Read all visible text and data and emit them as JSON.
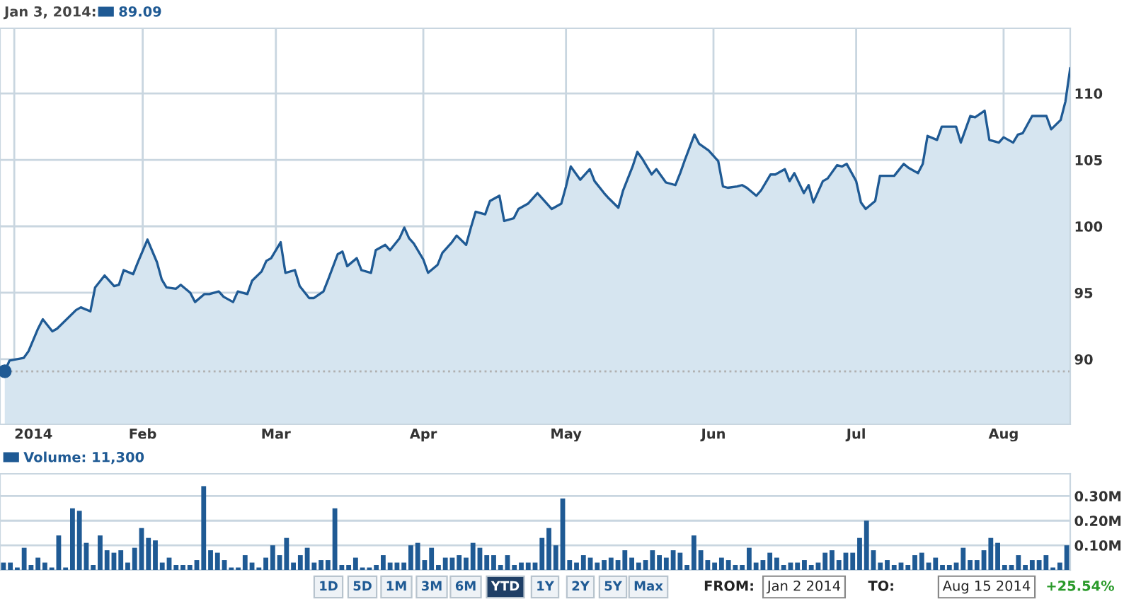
{
  "chart_data": [
    {
      "type": "area",
      "legend_title": "Jan 3, 2014:",
      "legend": "top left",
      "grid": true,
      "ylim": [
        85.1,
        114.9
      ],
      "yticks": [
        90,
        95,
        100,
        105,
        110
      ],
      "xlim": [
        "2014-01-02",
        "2014-08-15"
      ],
      "xticks": [
        {
          "value": "2014-01-05",
          "label": "2014"
        },
        {
          "value": "2014-02-01",
          "label": "Feb"
        },
        {
          "value": "2014-03-01",
          "label": "Mar"
        },
        {
          "value": "2014-04-01",
          "label": "Apr"
        },
        {
          "value": "2014-05-01",
          "label": "May"
        },
        {
          "value": "2014-06-01",
          "label": "Jun"
        },
        {
          "value": "2014-07-01",
          "label": "Jul"
        },
        {
          "value": "2014-08-01",
          "label": "Aug"
        }
      ],
      "ref_lines": [
        {
          "axis": "y",
          "value": 89.09,
          "color": "#b0b0b0",
          "line_style": "dotted"
        }
      ],
      "series": [
        {
          "name": "89.09",
          "color": "#1f5a94",
          "x": [
            "2014-01-03",
            "2014-01-04",
            "2014-01-07",
            "2014-01-08",
            "2014-01-10",
            "2014-01-11",
            "2014-01-13",
            "2014-01-14",
            "2014-01-18",
            "2014-01-19",
            "2014-01-21",
            "2014-01-22",
            "2014-01-24",
            "2014-01-26",
            "2014-01-27",
            "2014-01-28",
            "2014-01-30",
            "2014-01-31",
            "2014-02-02",
            "2014-02-04",
            "2014-02-05",
            "2014-02-06",
            "2014-02-08",
            "2014-02-09",
            "2014-02-11",
            "2014-02-12",
            "2014-02-14",
            "2014-02-15",
            "2014-02-17",
            "2014-02-18",
            "2014-02-20",
            "2014-02-21",
            "2014-02-23",
            "2014-02-24",
            "2014-02-26",
            "2014-02-27",
            "2014-02-28",
            "2014-03-02",
            "2014-03-03",
            "2014-03-05",
            "2014-03-06",
            "2014-03-08",
            "2014-03-09",
            "2014-03-11",
            "2014-03-12",
            "2014-03-14",
            "2014-03-15",
            "2014-03-16",
            "2014-03-18",
            "2014-03-19",
            "2014-03-21",
            "2014-03-22",
            "2014-03-24",
            "2014-03-25",
            "2014-03-27",
            "2014-03-28",
            "2014-03-29",
            "2014-03-30",
            "2014-04-01",
            "2014-04-02",
            "2014-04-04",
            "2014-04-05",
            "2014-04-07",
            "2014-04-08",
            "2014-04-10",
            "2014-04-11",
            "2014-04-12",
            "2014-04-14",
            "2014-04-15",
            "2014-04-17",
            "2014-04-18",
            "2014-04-20",
            "2014-04-21",
            "2014-04-23",
            "2014-04-25",
            "2014-04-28",
            "2014-04-30",
            "2014-05-01",
            "2014-05-02",
            "2014-05-04",
            "2014-05-06",
            "2014-05-07",
            "2014-05-09",
            "2014-05-10",
            "2014-05-12",
            "2014-05-13",
            "2014-05-15",
            "2014-05-16",
            "2014-05-17",
            "2014-05-19",
            "2014-05-20",
            "2014-05-22",
            "2014-05-24",
            "2014-05-25",
            "2014-05-26",
            "2014-05-28",
            "2014-05-29",
            "2014-05-31",
            "2014-06-02",
            "2014-06-03",
            "2014-06-04",
            "2014-06-06",
            "2014-06-07",
            "2014-06-08",
            "2014-06-10",
            "2014-06-11",
            "2014-06-13",
            "2014-06-14",
            "2014-06-16",
            "2014-06-17",
            "2014-06-18",
            "2014-06-20",
            "2014-06-21",
            "2014-06-22",
            "2014-06-24",
            "2014-06-25",
            "2014-06-27",
            "2014-06-28",
            "2014-06-29",
            "2014-07-01",
            "2014-07-02",
            "2014-07-03",
            "2014-07-05",
            "2014-07-06",
            "2014-07-08",
            "2014-07-09",
            "2014-07-11",
            "2014-07-12",
            "2014-07-14",
            "2014-07-15",
            "2014-07-16",
            "2014-07-18",
            "2014-07-19",
            "2014-07-21",
            "2014-07-22",
            "2014-07-23",
            "2014-07-25",
            "2014-07-26",
            "2014-07-28",
            "2014-07-29",
            "2014-07-31",
            "2014-08-01",
            "2014-08-03",
            "2014-08-04",
            "2014-08-05",
            "2014-08-07",
            "2014-08-08",
            "2014-08-10",
            "2014-08-11",
            "2014-08-13",
            "2014-08-14",
            "2014-08-15"
          ],
          "values": [
            89.09,
            89.9,
            90.1,
            90.6,
            92.3,
            93.0,
            92.1,
            92.3,
            93.7,
            93.9,
            93.6,
            95.4,
            96.3,
            95.5,
            95.6,
            96.7,
            96.4,
            97.3,
            99.0,
            97.3,
            96.0,
            95.4,
            95.3,
            95.6,
            95.0,
            94.3,
            94.9,
            94.9,
            95.1,
            94.7,
            94.3,
            95.1,
            94.9,
            95.9,
            96.6,
            97.4,
            97.6,
            98.8,
            96.5,
            96.7,
            95.5,
            94.6,
            94.6,
            95.1,
            96.0,
            97.9,
            98.1,
            97.0,
            97.6,
            96.7,
            96.5,
            98.2,
            98.6,
            98.2,
            99.1,
            99.9,
            99.1,
            98.7,
            97.5,
            96.5,
            97.1,
            98.0,
            98.8,
            99.3,
            98.6,
            99.9,
            101.1,
            100.9,
            101.9,
            102.3,
            100.4,
            100.6,
            101.3,
            101.7,
            102.5,
            101.3,
            101.7,
            103.0,
            104.5,
            103.5,
            104.3,
            103.4,
            102.5,
            102.1,
            101.4,
            102.7,
            104.5,
            105.6,
            105.1,
            103.9,
            104.3,
            103.3,
            103.1,
            104.0,
            105.0,
            106.9,
            106.2,
            105.7,
            104.9,
            103.0,
            102.9,
            103.0,
            103.1,
            102.9,
            102.3,
            102.7,
            103.9,
            103.9,
            104.3,
            103.4,
            104.0,
            102.5,
            103.1,
            101.8,
            103.4,
            103.6,
            104.6,
            104.5,
            104.7,
            103.4,
            101.8,
            101.3,
            101.9,
            103.8,
            103.8,
            103.8,
            104.7,
            104.4,
            104.0,
            104.7,
            106.8,
            106.5,
            107.5,
            107.5,
            107.5,
            106.3,
            108.3,
            108.2,
            108.7,
            106.5,
            106.3,
            106.7,
            106.3,
            106.9,
            107.0,
            108.3,
            108.3,
            108.3,
            107.3,
            108.0,
            109.4,
            111.9
          ]
        },
        {
          "type": "scatter",
          "marker": "circle",
          "color": "#1f5a94",
          "x": [
            "2014-01-03"
          ],
          "values": [
            89.09
          ]
        }
      ]
    },
    {
      "type": "bar",
      "legend": "top left",
      "grid": "y",
      "tick_labels": "y",
      "ylim": [
        0,
        0.39
      ],
      "yticks": [
        {
          "value": 0.1,
          "label": "0.10M"
        },
        {
          "value": 0.2,
          "label": "0.20M"
        },
        {
          "value": 0.3,
          "label": "0.30M"
        }
      ],
      "categories": [
        null,
        null,
        null,
        null,
        null,
        null,
        null,
        null,
        null,
        null,
        null,
        null,
        null,
        null,
        null,
        null,
        null,
        null,
        null,
        null,
        null,
        null,
        null,
        null,
        null,
        null,
        null,
        null,
        null,
        null,
        null,
        null,
        null,
        null,
        null,
        null,
        null,
        null,
        null,
        null,
        null,
        null,
        null,
        null,
        null,
        null,
        null,
        null,
        null,
        null,
        null,
        null,
        null,
        null,
        null,
        null,
        null,
        null,
        null,
        null,
        null,
        null,
        null,
        null,
        null,
        null,
        null,
        null,
        null,
        null,
        null,
        null,
        null,
        null,
        null,
        null,
        null,
        null,
        null,
        null,
        null,
        null,
        null,
        null,
        null,
        null,
        null,
        null,
        null,
        null,
        null,
        null,
        null,
        null,
        null,
        null,
        null,
        null,
        null,
        null,
        null,
        null,
        null,
        null,
        null,
        null,
        null,
        null,
        null,
        null,
        null,
        null,
        null,
        null,
        null,
        null,
        null,
        null,
        null,
        null,
        null,
        null,
        null,
        null,
        null,
        null,
        null,
        null,
        null,
        null,
        null,
        null,
        null,
        null,
        null,
        null,
        null,
        null,
        null,
        null,
        null,
        null,
        null,
        null,
        null,
        null,
        null,
        null,
        null,
        null,
        null,
        null,
        null,
        null,
        null
      ],
      "series": [
        {
          "name": "Volume: 11,300",
          "color": "#1f5a94",
          "values": [
            0.03,
            0.03,
            0.01,
            0.09,
            0.02,
            0.05,
            0.03,
            0.01,
            0.14,
            0.01,
            0.25,
            0.24,
            0.11,
            0.02,
            0.14,
            0.08,
            0.07,
            0.08,
            0.03,
            0.09,
            0.17,
            0.13,
            0.12,
            0.03,
            0.05,
            0.02,
            0.02,
            0.02,
            0.04,
            0.34,
            0.08,
            0.07,
            0.04,
            0.01,
            0.01,
            0.06,
            0.03,
            0.01,
            0.05,
            0.1,
            0.06,
            0.13,
            0.03,
            0.06,
            0.09,
            0.03,
            0.04,
            0.04,
            0.25,
            0.02,
            0.02,
            0.05,
            0.01,
            0.01,
            0.02,
            0.06,
            0.03,
            0.03,
            0.03,
            0.1,
            0.11,
            0.04,
            0.09,
            0.02,
            0.05,
            0.05,
            0.06,
            0.05,
            0.11,
            0.09,
            0.06,
            0.06,
            0.02,
            0.06,
            0.02,
            0.03,
            0.03,
            0.03,
            0.13,
            0.17,
            0.1,
            0.29,
            0.04,
            0.03,
            0.06,
            0.05,
            0.03,
            0.04,
            0.05,
            0.04,
            0.08,
            0.05,
            0.03,
            0.04,
            0.08,
            0.06,
            0.05,
            0.08,
            0.07,
            0.02,
            0.14,
            0.08,
            0.04,
            0.03,
            0.05,
            0.04,
            0.02,
            0.02,
            0.09,
            0.03,
            0.04,
            0.07,
            0.05,
            0.02,
            0.03,
            0.03,
            0.04,
            0.02,
            0.03,
            0.07,
            0.08,
            0.04,
            0.07,
            0.07,
            0.13,
            0.2,
            0.08,
            0.03,
            0.04,
            0.02,
            0.03,
            0.02,
            0.06,
            0.07,
            0.03,
            0.05,
            0.02,
            0.02,
            0.03,
            0.09,
            0.04,
            0.04,
            0.08,
            0.13,
            0.11,
            0.02,
            0.02,
            0.06,
            0.02,
            0.04,
            0.04,
            0.06,
            0.01,
            0.03,
            0.1
          ]
        }
      ],
      "annotations": [
        "1D",
        "5D",
        "1M",
        "3M",
        "6M",
        "YTD",
        "1Y",
        "2Y",
        "5Y",
        "Max",
        "FROM:",
        "Jan 2 2014",
        "TO:",
        "Aug 15 2014",
        "+25.54%"
      ]
    }
  ]
}
